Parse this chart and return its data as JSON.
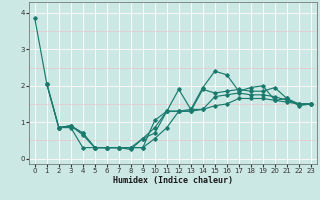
{
  "xlabel": "Humidex (Indice chaleur)",
  "bg_color": "#cce8e4",
  "line_color": "#1a7a6e",
  "grid_color_white": "#ffffff",
  "grid_color_pink": "#e8c8c8",
  "xlim": [
    -0.5,
    23.5
  ],
  "ylim": [
    -0.15,
    4.3
  ],
  "yticks": [
    0,
    1,
    2,
    3,
    4
  ],
  "xticks": [
    0,
    1,
    2,
    3,
    4,
    5,
    6,
    7,
    8,
    9,
    10,
    11,
    12,
    13,
    14,
    15,
    16,
    17,
    18,
    19,
    20,
    21,
    22,
    23
  ],
  "lines": [
    {
      "x": [
        0,
        1,
        2,
        3,
        4,
        5,
        6,
        7,
        8,
        9,
        10,
        11,
        12,
        13,
        14,
        15,
        16,
        17,
        18,
        19,
        20,
        21,
        22,
        23
      ],
      "y": [
        3.85,
        2.05,
        0.85,
        0.85,
        0.3,
        0.3,
        0.3,
        0.3,
        0.25,
        0.55,
        0.85,
        1.3,
        1.9,
        1.35,
        1.95,
        2.4,
        2.3,
        1.85,
        1.95,
        2.0,
        1.6,
        1.65,
        1.45,
        1.5
      ]
    },
    {
      "x": [
        1,
        2,
        3,
        4,
        5,
        6,
        7,
        8,
        9,
        10,
        11,
        12,
        13,
        14,
        15,
        16,
        17,
        18,
        19,
        20,
        21,
        22,
        23
      ],
      "y": [
        2.05,
        0.85,
        0.9,
        0.65,
        0.3,
        0.3,
        0.3,
        0.3,
        0.3,
        0.55,
        0.85,
        1.3,
        1.3,
        1.9,
        1.8,
        1.85,
        1.9,
        1.85,
        1.85,
        1.95,
        1.65,
        1.5,
        1.5
      ]
    },
    {
      "x": [
        1,
        2,
        3,
        4,
        5,
        6,
        7,
        8,
        9,
        10,
        11,
        12,
        13,
        14,
        15,
        16,
        17,
        18,
        19,
        20,
        21,
        22,
        23
      ],
      "y": [
        2.05,
        0.85,
        0.9,
        0.7,
        0.3,
        0.3,
        0.3,
        0.3,
        0.55,
        0.7,
        1.3,
        1.3,
        1.35,
        1.35,
        1.7,
        1.75,
        1.8,
        1.75,
        1.75,
        1.7,
        1.6,
        1.5,
        1.5
      ]
    },
    {
      "x": [
        2,
        3,
        4,
        5,
        6,
        7,
        8,
        9,
        10,
        11,
        12,
        13,
        14,
        15,
        16,
        17,
        18,
        19,
        20,
        21,
        22,
        23
      ],
      "y": [
        0.85,
        0.9,
        0.7,
        0.3,
        0.3,
        0.3,
        0.3,
        0.3,
        1.05,
        1.3,
        1.3,
        1.3,
        1.35,
        1.45,
        1.5,
        1.65,
        1.65,
        1.65,
        1.6,
        1.55,
        1.5,
        1.5
      ]
    }
  ]
}
